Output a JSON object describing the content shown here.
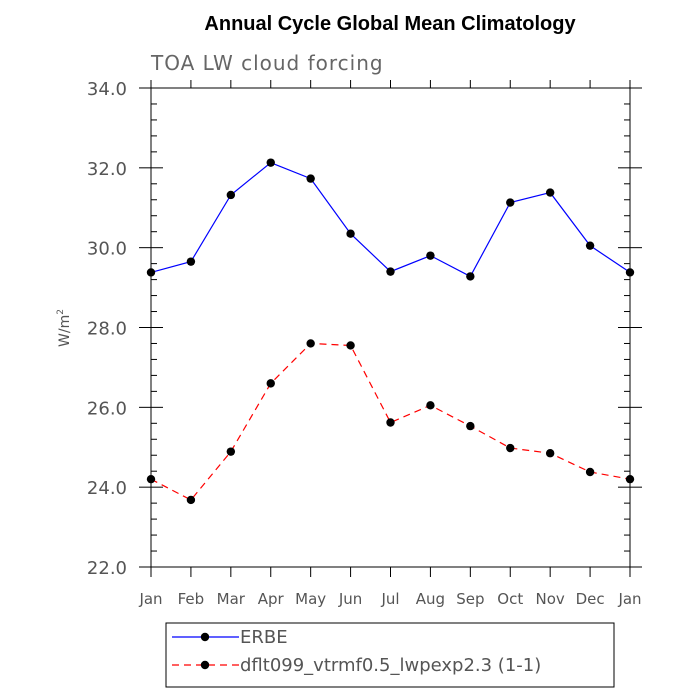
{
  "chart_data": {
    "type": "line",
    "title": "Annual Cycle Global Mean Climatology",
    "subtitle": "TOA LW cloud forcing",
    "ylabel_base": "W/m",
    "ylabel_sup": "2",
    "ylim": [
      22.0,
      34.0
    ],
    "y_ticks": [
      "22.0",
      "24.0",
      "26.0",
      "28.0",
      "30.0",
      "32.0",
      "34.0"
    ],
    "categories": [
      "Jan",
      "Feb",
      "Mar",
      "Apr",
      "May",
      "Jun",
      "Jul",
      "Aug",
      "Sep",
      "Oct",
      "Nov",
      "Dec",
      "Jan"
    ],
    "series": [
      {
        "name": "ERBE",
        "color": "#0000ff",
        "dash": "solid",
        "values": [
          29.38,
          29.65,
          31.32,
          32.13,
          31.73,
          30.35,
          29.4,
          29.8,
          29.28,
          31.13,
          31.38,
          30.05,
          29.38
        ]
      },
      {
        "name": "dflt099_vtrmf0.5_lwpexp2.3 (1-1)",
        "color": "#ff0000",
        "dash": "dashed",
        "values": [
          24.2,
          23.68,
          24.89,
          26.6,
          27.6,
          27.55,
          25.62,
          26.05,
          25.53,
          24.98,
          24.85,
          24.38,
          24.2
        ]
      }
    ],
    "legend_position": "bottom"
  }
}
